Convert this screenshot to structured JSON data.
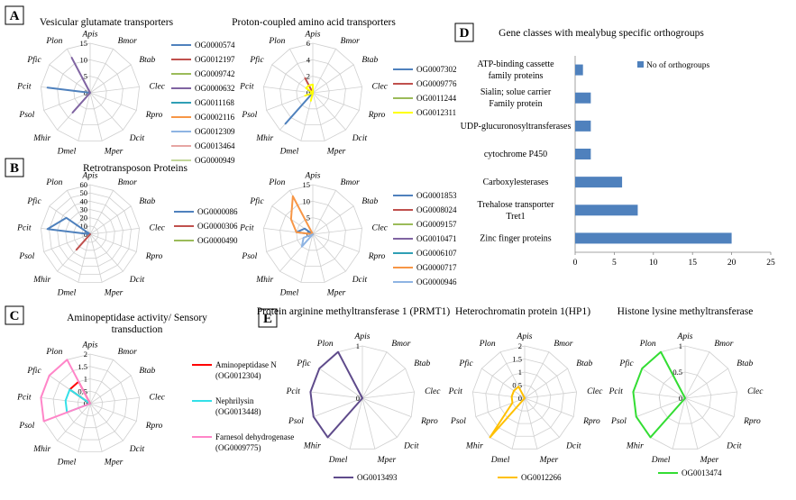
{
  "panels": {
    "A": "A",
    "B": "B",
    "C": "C",
    "D": "D",
    "E": "E"
  },
  "bar_axis": {
    "ticks": [
      "0",
      "5",
      "10",
      "15",
      "20",
      "25"
    ]
  },
  "chart_data": [
    {
      "panel": "A",
      "type": "radar",
      "title": "Vesicular glutamate transporters",
      "axes": [
        "Apis",
        "Bmor",
        "Btab",
        "Clec",
        "Rpro",
        "Dcit",
        "Mper",
        "Dmel",
        "Mhir",
        "Psol",
        "Pcit",
        "Pfic",
        "Plon"
      ],
      "rmax": 15,
      "tick_labels": [
        "0",
        "5",
        "10",
        "15"
      ],
      "series": [
        {
          "name": "OG0000574",
          "color": "#4f81bd",
          "values": [
            0,
            0,
            0,
            0,
            0,
            0,
            0,
            0,
            0,
            0,
            13,
            0,
            0
          ]
        },
        {
          "name": "OG0012197",
          "color": "#c0504d",
          "values": [
            0,
            0,
            0,
            0,
            0,
            0,
            0,
            0,
            0,
            0,
            0,
            0,
            0
          ]
        },
        {
          "name": "OG0009742",
          "color": "#9bbb59",
          "values": [
            0,
            0,
            0,
            0,
            0,
            0,
            0,
            0,
            0,
            0,
            0,
            0,
            0
          ]
        },
        {
          "name": "OG0000632",
          "color": "#8064a2",
          "values": [
            0,
            0,
            0,
            0,
            0,
            0,
            0,
            0,
            8,
            0,
            0,
            0,
            12
          ]
        },
        {
          "name": "OG0011168",
          "color": "#2f9fb5",
          "values": [
            0,
            0,
            0,
            0,
            0,
            0,
            0,
            0,
            0,
            0,
            0,
            0,
            0
          ]
        },
        {
          "name": "OG0002116",
          "color": "#f79646",
          "values": [
            0,
            0,
            0,
            0,
            0,
            0,
            0,
            0,
            0,
            0,
            0,
            0,
            0
          ]
        },
        {
          "name": "OG0012309",
          "color": "#8eb4e3",
          "values": [
            0,
            0,
            0,
            0,
            0,
            0,
            0,
            0,
            0,
            0,
            0,
            0,
            0
          ]
        },
        {
          "name": "OG0013464",
          "color": "#e6a5a3",
          "values": [
            0,
            0,
            0,
            0,
            0,
            0,
            0,
            0,
            0,
            0,
            0,
            0,
            0
          ]
        },
        {
          "name": "OG0000949",
          "color": "#c3d69b",
          "values": [
            0,
            0,
            0,
            0,
            0,
            0,
            0,
            0,
            0,
            0,
            0,
            0,
            0
          ]
        }
      ]
    },
    {
      "panel": "A",
      "type": "radar",
      "title": "Proton-coupled amino acid transporters",
      "axes": [
        "Apis",
        "Bmor",
        "Btab",
        "Clec",
        "Rpro",
        "Dcit",
        "Mper",
        "Dmel",
        "Mhir",
        "Psol",
        "Pcit",
        "Pfic",
        "Plon"
      ],
      "rmax": 6,
      "tick_labels": [
        "0",
        "2",
        "4",
        "6"
      ],
      "series": [
        {
          "name": "OG0007302",
          "color": "#4f81bd",
          "values": [
            0,
            0,
            0,
            0,
            0,
            0,
            0,
            0,
            5,
            0,
            0,
            0,
            0
          ]
        },
        {
          "name": "OG0009776",
          "color": "#c0504d",
          "values": [
            0,
            0,
            0,
            0,
            0,
            0,
            0,
            0,
            0,
            0,
            0,
            0,
            2
          ]
        },
        {
          "name": "OG0011244",
          "color": "#9bbb59",
          "values": [
            0,
            0,
            0,
            0,
            0,
            0,
            0,
            0,
            0,
            0,
            0,
            0,
            0
          ]
        },
        {
          "name": "OG0012311",
          "color": "#ffff00",
          "values": [
            1,
            0,
            0,
            0,
            0,
            0,
            0,
            1,
            0,
            1,
            0,
            1,
            1
          ]
        }
      ]
    },
    {
      "panel": "B",
      "type": "radar",
      "title": "Retrotransposon Proteins",
      "axes": [
        "Apis",
        "Bmor",
        "Btab",
        "Clec",
        "Rpro",
        "Dcit",
        "Mper",
        "Dmel",
        "Mhir",
        "Psol",
        "Pcit",
        "Pfic",
        "Plon"
      ],
      "rmax": 60,
      "tick_labels": [
        "0",
        "10",
        "20",
        "30",
        "40",
        "50",
        "60"
      ],
      "series": [
        {
          "name": "OG0000086",
          "color": "#4f81bd",
          "values": [
            0,
            0,
            0,
            0,
            0,
            0,
            0,
            0,
            0,
            0,
            52,
            35,
            0
          ]
        },
        {
          "name": "OG0000306",
          "color": "#c0504d",
          "values": [
            0,
            0,
            0,
            0,
            0,
            0,
            0,
            0,
            25,
            0,
            0,
            0,
            0
          ]
        },
        {
          "name": "OG0000490",
          "color": "#9bbb59",
          "values": [
            0,
            0,
            0,
            0,
            0,
            0,
            0,
            0,
            0,
            0,
            0,
            0,
            0
          ]
        }
      ]
    },
    {
      "panel": "B",
      "type": "radar",
      "title": "",
      "axes": [
        "Apis",
        "Bmor",
        "Btab",
        "Clec",
        "Rpro",
        "Dcit",
        "Mper",
        "Dmel",
        "Mhir",
        "Psol",
        "Pcit",
        "Pfic",
        "Plon"
      ],
      "rmax": 15,
      "tick_labels": [
        "0",
        "5",
        "10",
        "15"
      ],
      "series": [
        {
          "name": "OG0001853",
          "color": "#4f81bd",
          "values": [
            0,
            0,
            0,
            0,
            0,
            0,
            0,
            0,
            0,
            0,
            5,
            3,
            0
          ]
        },
        {
          "name": "OG0008024",
          "color": "#c0504d",
          "values": [
            0,
            0,
            0,
            0,
            0,
            0,
            0,
            0,
            0,
            0,
            0,
            0,
            0
          ]
        },
        {
          "name": "OG0009157",
          "color": "#9bbb59",
          "values": [
            0,
            0,
            0,
            0,
            0,
            0,
            0,
            0,
            0,
            0,
            0,
            0,
            0
          ]
        },
        {
          "name": "OG0010471",
          "color": "#8064a2",
          "values": [
            0,
            0,
            0,
            0,
            0,
            0,
            0,
            0,
            0,
            0,
            0,
            0,
            0
          ]
        },
        {
          "name": "OG0006107",
          "color": "#2f9fb5",
          "values": [
            0,
            0,
            0,
            0,
            0,
            0,
            0,
            0,
            0,
            0,
            0,
            0,
            0
          ]
        },
        {
          "name": "OG0000717",
          "color": "#f79646",
          "values": [
            0,
            0,
            0,
            0,
            0,
            0,
            0,
            0,
            0,
            0,
            5,
            8,
            13
          ]
        },
        {
          "name": "OG0000946",
          "color": "#8eb4e3",
          "values": [
            0,
            0,
            0,
            0,
            0,
            0,
            0,
            0,
            5,
            3,
            0,
            0,
            0
          ]
        }
      ]
    },
    {
      "panel": "C",
      "type": "radar",
      "title": "Aminopeptidase activity/ Sensory transduction",
      "axes": [
        "Apis",
        "Bmor",
        "Btab",
        "Clec",
        "Rpro",
        "Dcit",
        "Mper",
        "Dmel",
        "Mhir",
        "Psol",
        "Pcit",
        "Pfic",
        "Plon"
      ],
      "rmax": 2,
      "tick_labels": [
        "0",
        "0.5",
        "1",
        "1.5",
        "2"
      ],
      "series": [
        {
          "name": "Aminopeptidase N (OG0012304)",
          "color": "#ff0000",
          "values": [
            0,
            0,
            0,
            0,
            0,
            0,
            0,
            0,
            0,
            0,
            0,
            1,
            1
          ]
        },
        {
          "name": "Nephrilysin (OG0013448)",
          "color": "#33e0e8",
          "values": [
            0,
            0,
            0,
            0,
            0,
            0,
            0,
            0,
            0,
            1,
            1,
            1,
            0
          ]
        },
        {
          "name": "Farnesol dehydrogenase (OG0009775)",
          "color": "#ff85c8",
          "values": [
            0,
            0,
            0,
            0,
            0,
            0,
            0,
            0,
            0,
            2,
            2,
            2,
            2
          ]
        }
      ]
    },
    {
      "panel": "D",
      "type": "bar",
      "orientation": "horizontal",
      "title": "Gene classes with mealybug specific orthogroups",
      "categories": [
        "ATP-binding cassette family proteins",
        "Sialin; solue carrier Family protein",
        "UDP-glucuronosyltransferases",
        "cytochrome P450",
        "Carboxylesterases",
        "Trehalose transporter Tret1",
        "Zinc finger proteins"
      ],
      "values": [
        1,
        2,
        2,
        2,
        6,
        8,
        20
      ],
      "xlim": [
        0,
        25
      ],
      "legend": "top-right",
      "series": [
        {
          "name": "No of orthogroups",
          "color": "#4f81bd"
        }
      ]
    },
    {
      "panel": "E",
      "type": "radar",
      "title": "Protein arginine methyltransferase 1 (PRMT1)",
      "axes": [
        "Apis",
        "Bmor",
        "Btab",
        "Clec",
        "Rpro",
        "Dcit",
        "Mper",
        "Dmel",
        "Mhir",
        "Psol",
        "Pcit",
        "Pfic",
        "Plon"
      ],
      "rmax": 1,
      "tick_labels": [
        "0",
        "1"
      ],
      "series": [
        {
          "name": "OG0013493",
          "color": "#5f4b8b",
          "values": [
            0,
            0,
            0,
            0,
            0,
            0,
            0,
            0,
            1,
            1,
            1,
            1,
            1
          ]
        }
      ]
    },
    {
      "panel": "E",
      "type": "radar",
      "title": "Heterochromatin protein 1(HP1)",
      "axes": [
        "Apis",
        "Bmor",
        "Btab",
        "Clec",
        "Rpro",
        "Dcit",
        "Mper",
        "Dmel",
        "Mhir",
        "Psol",
        "Pcit",
        "Pfic",
        "Plon"
      ],
      "rmax": 2,
      "tick_labels": [
        "0",
        "0.5",
        "1",
        "1.5",
        "2"
      ],
      "series": [
        {
          "name": "OG0012266",
          "color": "#ffc000",
          "values": [
            0,
            0,
            0,
            0,
            0,
            0,
            0,
            0,
            2,
            0.5,
            0.5,
            0.5,
            0.5
          ]
        }
      ]
    },
    {
      "panel": "E",
      "type": "radar",
      "title": "Histone lysine methyltransferase",
      "axes": [
        "Apis",
        "Bmor",
        "Btab",
        "Clec",
        "Rpro",
        "Dcit",
        "Mper",
        "Dmel",
        "Mhir",
        "Psol",
        "Pcit",
        "Pfic",
        "Plon"
      ],
      "rmax": 1,
      "tick_labels": [
        "0",
        "0.5",
        "1"
      ],
      "series": [
        {
          "name": "OG0013474",
          "color": "#33dd33",
          "values": [
            0,
            0,
            0,
            0,
            0,
            0,
            0,
            0,
            1,
            1,
            1,
            1,
            1
          ]
        }
      ]
    }
  ]
}
